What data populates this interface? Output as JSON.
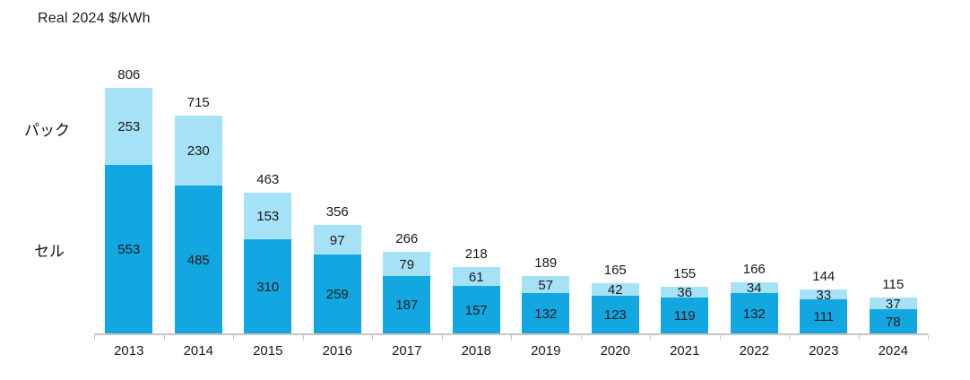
{
  "title": "Real 2024 $/kWh",
  "side_labels": {
    "pack": "パック",
    "cell": "セル"
  },
  "colors": {
    "cell_segment": "#12a7e0",
    "pack_segment": "#a5e1f7",
    "axis": "#c6c6c6",
    "label_text": "#1a1a1a"
  },
  "chart_data": {
    "type": "bar",
    "stacked": true,
    "title": "Real 2024 $/kWh",
    "categories": [
      "2013",
      "2014",
      "2015",
      "2016",
      "2017",
      "2018",
      "2019",
      "2020",
      "2021",
      "2022",
      "2023",
      "2024"
    ],
    "series": [
      {
        "name": "セル",
        "color": "#12a7e0",
        "values": [
          553,
          485,
          310,
          259,
          187,
          157,
          132,
          123,
          119,
          132,
          111,
          78
        ]
      },
      {
        "name": "パック",
        "color": "#a5e1f7",
        "values": [
          253,
          230,
          153,
          97,
          79,
          61,
          57,
          42,
          36,
          34,
          33,
          37
        ]
      }
    ],
    "totals": [
      806,
      715,
      463,
      356,
      266,
      218,
      189,
      165,
      155,
      166,
      144,
      115
    ],
    "xlabel": "",
    "ylabel": "Real 2024 $/kWh",
    "ylim": [
      0,
      850
    ],
    "grid": false,
    "legend_position": "left-side-labels",
    "data_labels": "inside-segments-and-total-above"
  }
}
